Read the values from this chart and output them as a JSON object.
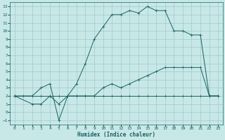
{
  "background_color": "#c8e8e8",
  "grid_color": "#a0c8c8",
  "line_color": "#1a6060",
  "xlabel": "Humidex (Indice chaleur)",
  "xlim": [
    -0.5,
    23.5
  ],
  "ylim": [
    -1.5,
    13.5
  ],
  "xticks": [
    0,
    1,
    2,
    3,
    4,
    5,
    6,
    7,
    8,
    9,
    10,
    11,
    12,
    13,
    14,
    15,
    16,
    17,
    18,
    19,
    20,
    21,
    22,
    23
  ],
  "yticks": [
    -1,
    0,
    1,
    2,
    3,
    4,
    5,
    6,
    7,
    8,
    9,
    10,
    11,
    12,
    13
  ],
  "line1_x": [
    0,
    1,
    2,
    3,
    4,
    5,
    6,
    7,
    8,
    9,
    10,
    11,
    12,
    13,
    14,
    15,
    16,
    17,
    18,
    19,
    20,
    21,
    22,
    23
  ],
  "line1_y": [
    2,
    2,
    2,
    2,
    2,
    2,
    2,
    2,
    2,
    2,
    2,
    2,
    2,
    2,
    2,
    2,
    2,
    2,
    2,
    2,
    2,
    2,
    2,
    2
  ],
  "line2_x": [
    0,
    2,
    3,
    4,
    5,
    6,
    7,
    8,
    9,
    10,
    11,
    12,
    13,
    14,
    15,
    16,
    17,
    18,
    19,
    20,
    21,
    22,
    23
  ],
  "line2_y": [
    2,
    1,
    1,
    2,
    1,
    2,
    2,
    2,
    2,
    3,
    3.5,
    3,
    3.5,
    4,
    4.5,
    5,
    5.5,
    5.5,
    5.5,
    5.5,
    5.5,
    2,
    2
  ],
  "line3_x": [
    0,
    2,
    3,
    4,
    5,
    6,
    7,
    8,
    9,
    10,
    11,
    12,
    13,
    14,
    15,
    16,
    17,
    18,
    19,
    20,
    21,
    22,
    23
  ],
  "line3_y": [
    2,
    2,
    3,
    3.5,
    -1,
    2,
    3.5,
    6,
    9,
    10.5,
    12,
    12,
    12.5,
    12.2,
    13,
    12.5,
    12.5,
    10,
    10,
    9.5,
    9.5,
    2,
    2
  ],
  "marker": "+"
}
